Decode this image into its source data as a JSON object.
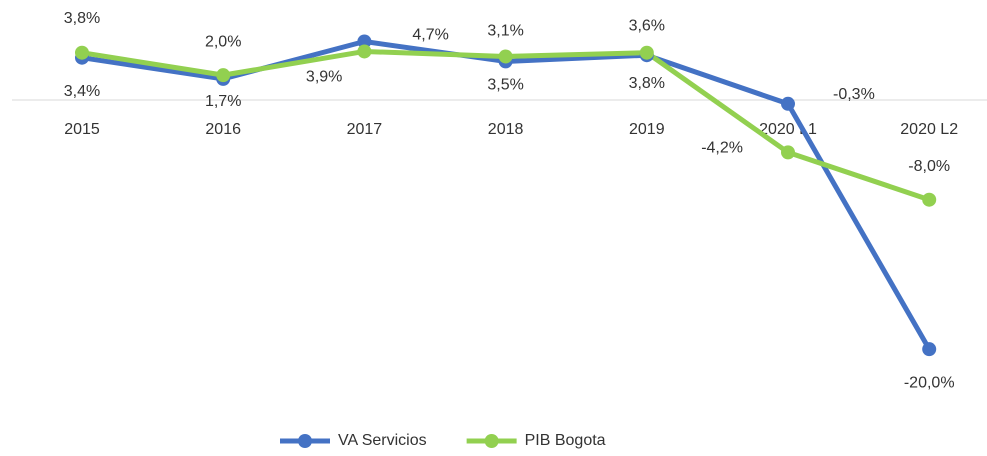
{
  "chart_data": {
    "type": "line",
    "categories": [
      "2015",
      "2016",
      "2017",
      "2018",
      "2019",
      "2020 L1",
      "2020 L2"
    ],
    "series": [
      {
        "name": "VA Servicios",
        "color": "#4472c4",
        "values": [
          3.4,
          1.7,
          4.7,
          3.1,
          3.6,
          -0.3,
          -20.0
        ],
        "value_labels": [
          "3,4%",
          "1,7%",
          "4,7%",
          "3,1%",
          "3,6%",
          "-0,3%",
          "-20,0%"
        ]
      },
      {
        "name": "PIB Bogota",
        "color": "#92d050",
        "values": [
          3.8,
          2.0,
          3.9,
          3.5,
          3.8,
          -4.2,
          -8.0
        ],
        "value_labels": [
          "3,8%",
          "2,0%",
          "3,9%",
          "3,5%",
          "3,8%",
          "-4,2%",
          "-8,0%"
        ]
      }
    ],
    "ylim": [
      -24,
      8
    ],
    "legend": "bottom"
  }
}
